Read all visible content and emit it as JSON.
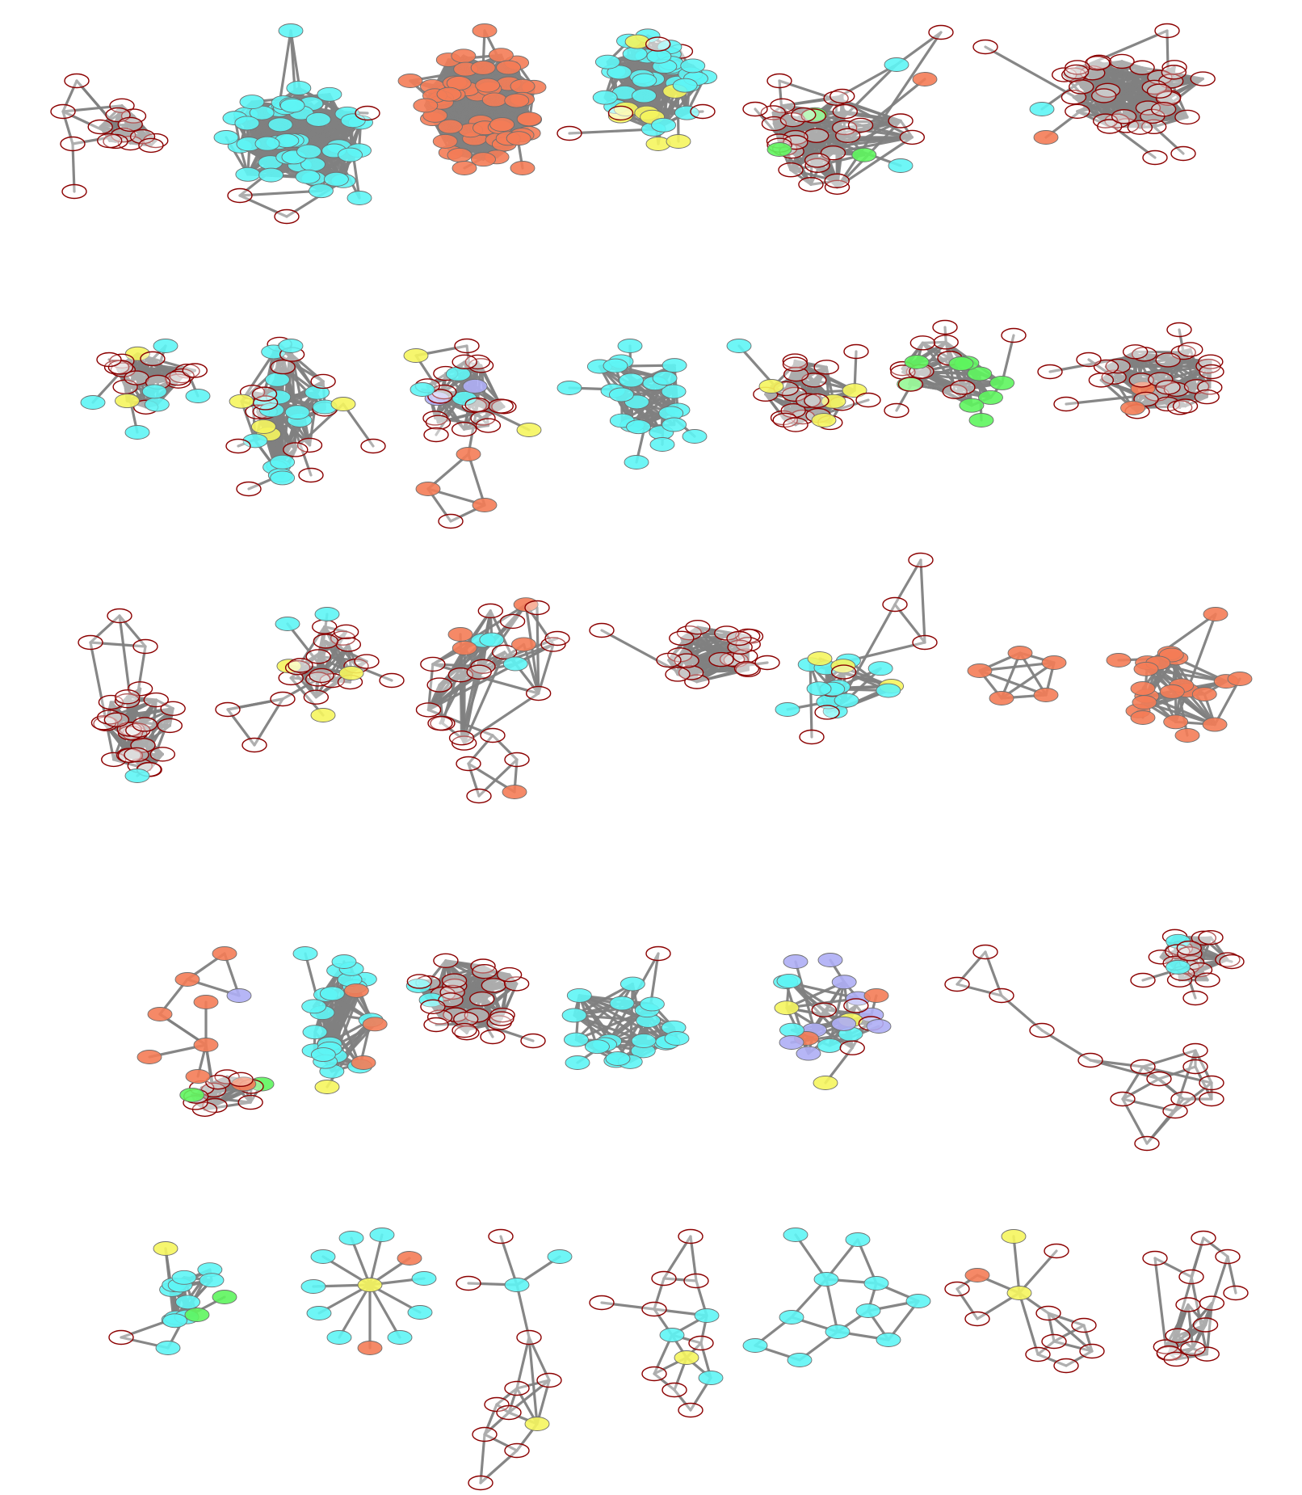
{
  "colors": {
    "background": "#ffffff",
    "edge": "#808080",
    "empty_node_fill": "#ffffff",
    "empty_node_stroke": "#8b0000",
    "cyan": "#5ef5f5",
    "orange": "#f47c57",
    "yellow": "#f5f55e",
    "green": "#5ef55e",
    "lavender": "#aeaef5"
  },
  "layout_grid": {
    "rows": 5,
    "graphs_per_row": [
      6,
      7,
      7,
      7,
      7
    ],
    "total_graphs": 34
  }
}
